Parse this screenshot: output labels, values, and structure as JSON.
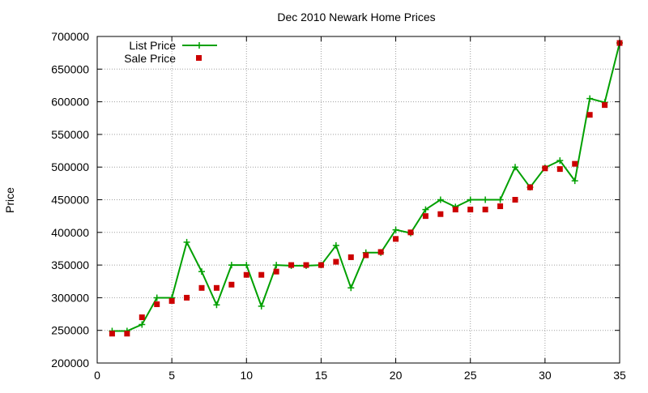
{
  "chart_data": {
    "type": "line",
    "title": "Dec 2010 Newark Home Prices",
    "xlabel": "",
    "ylabel": "Price",
    "xlim": [
      0,
      35
    ],
    "ylim": [
      200000,
      700000
    ],
    "xticks": [
      0,
      5,
      10,
      15,
      20,
      25,
      30,
      35
    ],
    "yticks": [
      200000,
      250000,
      300000,
      350000,
      400000,
      450000,
      500000,
      550000,
      600000,
      650000,
      700000
    ],
    "grid": true,
    "legend_position": "top-left",
    "series": [
      {
        "name": "List Price",
        "style": "line-plus",
        "color": "#00a000",
        "x": [
          1,
          2,
          3,
          4,
          5,
          6,
          7,
          8,
          9,
          10,
          11,
          12,
          13,
          14,
          15,
          16,
          17,
          18,
          19,
          20,
          21,
          22,
          23,
          24,
          25,
          26,
          27,
          28,
          29,
          30,
          31,
          32,
          33,
          34,
          35
        ],
        "y": [
          249000,
          249000,
          259000,
          299900,
          299900,
          385000,
          340000,
          289000,
          350000,
          350000,
          287000,
          350000,
          349000,
          349000,
          349900,
          380000,
          315000,
          369000,
          369000,
          404000,
          399000,
          435000,
          450000,
          439000,
          450000,
          450000,
          450000,
          500000,
          469000,
          499000,
          510000,
          479000,
          605000,
          599000,
          690000
        ]
      },
      {
        "name": "Sale Price",
        "style": "square-points",
        "color": "#cc0000",
        "x": [
          1,
          2,
          3,
          4,
          5,
          6,
          7,
          8,
          9,
          10,
          11,
          12,
          13,
          14,
          15,
          16,
          17,
          18,
          19,
          20,
          21,
          22,
          23,
          24,
          25,
          26,
          27,
          28,
          29,
          30,
          31,
          32,
          33,
          34,
          35
        ],
        "y": [
          245000,
          245000,
          270000,
          290000,
          295000,
          300000,
          315000,
          315000,
          320000,
          335000,
          335000,
          340000,
          350000,
          350000,
          350000,
          355000,
          362000,
          365000,
          370000,
          390000,
          400000,
          425000,
          428000,
          435000,
          435000,
          435000,
          440000,
          450000,
          469000,
          498000,
          497000,
          505000,
          580000,
          595000,
          690000
        ]
      }
    ]
  }
}
